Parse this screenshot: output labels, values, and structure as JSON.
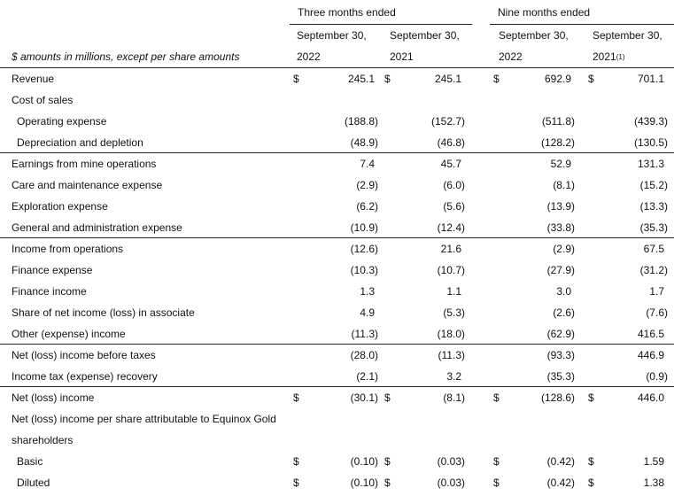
{
  "header": {
    "units_note": "$ amounts in millions, except per share amounts",
    "groups": [
      "Three months ended",
      "Nine months ended"
    ],
    "columns": [
      {
        "date": "September 30,",
        "year": "2022"
      },
      {
        "date": "September 30,",
        "year": "2021"
      },
      {
        "date": "September 30,",
        "year": "2022"
      },
      {
        "date": "September 30,",
        "year": "2021",
        "note": "(1)"
      }
    ]
  },
  "table": {
    "rows": [
      {
        "label": "Revenue",
        "currency": "$",
        "cells": [
          "245.1",
          "245.1",
          "692.9",
          "701.1"
        ]
      },
      {
        "label": "Cost of sales"
      },
      {
        "label": "Operating expense",
        "cells": [
          "(188.8)",
          "(152.7)",
          "(511.8)",
          "(439.3)"
        ]
      },
      {
        "label": "Depreciation and depletion",
        "cells": [
          "(48.9)",
          "(46.8)",
          "(128.2)",
          "(130.5)"
        ]
      },
      {
        "label": "Earnings from mine operations",
        "cells": [
          "7.4",
          "45.7",
          "52.9",
          "131.3"
        ]
      },
      {
        "label": "Care and maintenance expense",
        "cells": [
          "(2.9)",
          "(6.0)",
          "(8.1)",
          "(15.2)"
        ]
      },
      {
        "label": "Exploration expense",
        "cells": [
          "(6.2)",
          "(5.6)",
          "(13.9)",
          "(13.3)"
        ]
      },
      {
        "label": "General and administration expense",
        "cells": [
          "(10.9)",
          "(12.4)",
          "(33.8)",
          "(35.3)"
        ]
      },
      {
        "label": "Income from operations",
        "cells": [
          "(12.6)",
          "21.6",
          "(2.9)",
          "67.5"
        ]
      },
      {
        "label": "Finance expense",
        "cells": [
          "(10.3)",
          "(10.7)",
          "(27.9)",
          "(31.2)"
        ]
      },
      {
        "label": "Finance income",
        "cells": [
          "1.3",
          "1.1",
          "3.0",
          "1.7"
        ]
      },
      {
        "label": "Share of net income (loss) in associate",
        "cells": [
          "4.9",
          "(5.3)",
          "(2.6)",
          "(7.6)"
        ]
      },
      {
        "label": "Other (expense) income",
        "cells": [
          "(11.3)",
          "(18.0)",
          "(62.9)",
          "416.5"
        ]
      },
      {
        "label": "Net (loss) income before taxes",
        "cells": [
          "(28.0)",
          "(11.3)",
          "(93.3)",
          "446.9"
        ]
      },
      {
        "label": "Income tax (expense) recovery",
        "cells": [
          "(2.1)",
          "3.2",
          "(35.3)",
          "(0.9)"
        ]
      },
      {
        "label": "Net (loss) income",
        "currency": "$",
        "cells": [
          "(30.1)",
          "(8.1)",
          "(128.6)",
          "446.0"
        ]
      },
      {
        "label": "Net (loss) income per share attributable to Equinox Gold"
      },
      {
        "label": "shareholders"
      },
      {
        "label": "Basic",
        "currency": "$",
        "cells": [
          "(0.10)",
          "(0.03)",
          "(0.42)",
          "1.59"
        ]
      },
      {
        "label": "Diluted",
        "currency": "$",
        "cells": [
          "(0.10)",
          "(0.03)",
          "(0.42)",
          "1.38"
        ]
      }
    ]
  }
}
